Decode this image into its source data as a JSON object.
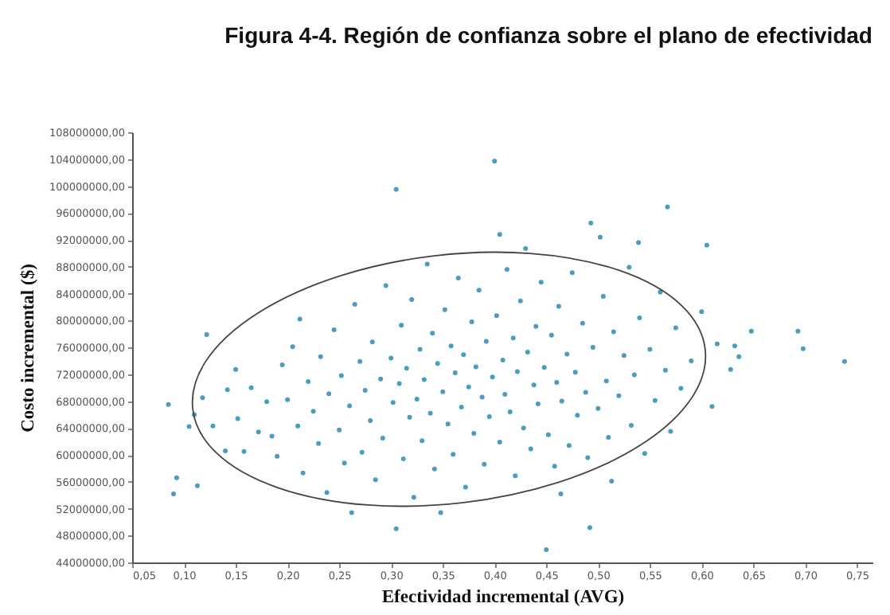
{
  "chart_data": {
    "type": "scatter",
    "title": "Figura 4-4. Región de confianza sobre el plano de efectividad",
    "xlabel": "Efectividad incremental (AVG)",
    "ylabel": "Costo incremental ($)",
    "xlim": [
      0.05,
      0.765
    ],
    "ylim": [
      44000000,
      108000000
    ],
    "xticks": [
      {
        "value": 0.05,
        "label": "0,05"
      },
      {
        "value": 0.1,
        "label": "0,10"
      },
      {
        "value": 0.15,
        "label": "0,15"
      },
      {
        "value": 0.2,
        "label": "0,20"
      },
      {
        "value": 0.25,
        "label": "0,25"
      },
      {
        "value": 0.3,
        "label": "0,30"
      },
      {
        "value": 0.35,
        "label": "0,35"
      },
      {
        "value": 0.4,
        "label": "0,40"
      },
      {
        "value": 0.45,
        "label": "0,45"
      },
      {
        "value": 0.5,
        "label": "0,50"
      },
      {
        "value": 0.55,
        "label": "0,55"
      },
      {
        "value": 0.6,
        "label": "0,60"
      },
      {
        "value": 0.65,
        "label": "0,65"
      },
      {
        "value": 0.7,
        "label": "0,70"
      },
      {
        "value": 0.75,
        "label": "0,75"
      }
    ],
    "yticks": [
      {
        "value": 44000000,
        "label": "44000000,00"
      },
      {
        "value": 48000000,
        "label": "48000000,00"
      },
      {
        "value": 52000000,
        "label": "52000000,00"
      },
      {
        "value": 56000000,
        "label": "56000000,00"
      },
      {
        "value": 60000000,
        "label": "60000000,00"
      },
      {
        "value": 64000000,
        "label": "64000000,00"
      },
      {
        "value": 68000000,
        "label": "68000000,00"
      },
      {
        "value": 72000000,
        "label": "72000000,00"
      },
      {
        "value": 76000000,
        "label": "76000000,00"
      },
      {
        "value": 80000000,
        "label": "80000000,00"
      },
      {
        "value": 84000000,
        "label": "84000000,00"
      },
      {
        "value": 88000000,
        "label": "88000000,00"
      },
      {
        "value": 92000000,
        "label": "92000000,00"
      },
      {
        "value": 96000000,
        "label": "96000000,00"
      },
      {
        "value": 100000000,
        "label": "100000000,00"
      },
      {
        "value": 104000000,
        "label": "104000000,00"
      },
      {
        "value": 108000000,
        "label": "108000000,00"
      }
    ],
    "grid": false,
    "marker": "circle",
    "series": [
      {
        "type": "scatter",
        "color": "#4a9dbd",
        "x": [
          0.085,
          0.093,
          0.09,
          0.113,
          0.122,
          0.105,
          0.11,
          0.118,
          0.128,
          0.14,
          0.142,
          0.15,
          0.152,
          0.158,
          0.165,
          0.172,
          0.18,
          0.185,
          0.19,
          0.195,
          0.2,
          0.205,
          0.21,
          0.212,
          0.215,
          0.22,
          0.225,
          0.23,
          0.232,
          0.238,
          0.24,
          0.245,
          0.25,
          0.252,
          0.255,
          0.26,
          0.262,
          0.265,
          0.27,
          0.272,
          0.275,
          0.28,
          0.282,
          0.285,
          0.29,
          0.292,
          0.295,
          0.3,
          0.302,
          0.305,
          0.305,
          0.308,
          0.31,
          0.312,
          0.315,
          0.318,
          0.32,
          0.322,
          0.325,
          0.328,
          0.33,
          0.332,
          0.335,
          0.338,
          0.34,
          0.342,
          0.345,
          0.348,
          0.35,
          0.352,
          0.355,
          0.358,
          0.36,
          0.362,
          0.365,
          0.368,
          0.37,
          0.372,
          0.375,
          0.378,
          0.38,
          0.382,
          0.385,
          0.388,
          0.39,
          0.392,
          0.395,
          0.398,
          0.4,
          0.402,
          0.405,
          0.405,
          0.408,
          0.41,
          0.412,
          0.415,
          0.418,
          0.42,
          0.422,
          0.425,
          0.428,
          0.43,
          0.432,
          0.435,
          0.438,
          0.44,
          0.442,
          0.445,
          0.448,
          0.45,
          0.452,
          0.455,
          0.458,
          0.46,
          0.462,
          0.464,
          0.465,
          0.47,
          0.472,
          0.475,
          0.478,
          0.48,
          0.485,
          0.488,
          0.49,
          0.492,
          0.493,
          0.495,
          0.5,
          0.502,
          0.505,
          0.508,
          0.51,
          0.513,
          0.515,
          0.52,
          0.525,
          0.53,
          0.532,
          0.535,
          0.539,
          0.54,
          0.545,
          0.55,
          0.555,
          0.56,
          0.565,
          0.567,
          0.57,
          0.575,
          0.58,
          0.59,
          0.6,
          0.605,
          0.61,
          0.615,
          0.628,
          0.632,
          0.636,
          0.648,
          0.693,
          0.698,
          0.738
        ],
        "values": [
          67500000,
          56600000,
          54200000,
          55400000,
          77900000,
          64200000,
          66000000,
          68500000,
          64300000,
          60600000,
          69700000,
          72700000,
          65400000,
          60500000,
          70000000,
          63400000,
          67900000,
          62800000,
          59800000,
          73400000,
          68200000,
          76100000,
          64300000,
          80200000,
          57300000,
          70900000,
          66500000,
          61700000,
          74600000,
          54400000,
          69100000,
          78600000,
          63700000,
          71800000,
          58800000,
          67300000,
          51400000,
          82400000,
          73900000,
          60400000,
          69600000,
          65100000,
          76800000,
          56300000,
          71300000,
          62500000,
          85200000,
          74400000,
          67800000,
          99500000,
          49000000,
          70600000,
          79300000,
          59400000,
          72900000,
          65600000,
          83100000,
          53700000,
          68300000,
          75700000,
          62100000,
          71200000,
          88400000,
          66200000,
          78100000,
          57900000,
          73600000,
          51400000,
          69400000,
          81600000,
          64600000,
          76200000,
          60100000,
          72200000,
          86300000,
          67100000,
          74900000,
          55200000,
          70100000,
          79800000,
          63200000,
          73100000,
          84500000,
          68600000,
          58600000,
          76900000,
          65700000,
          71600000,
          103700000,
          80700000,
          92800000,
          61900000,
          74100000,
          69000000,
          87600000,
          66400000,
          77400000,
          56900000,
          72400000,
          82900000,
          64000000,
          90700000,
          75300000,
          60900000,
          70400000,
          79100000,
          67600000,
          85700000,
          73000000,
          45900000,
          63000000,
          77800000,
          58300000,
          70800000,
          82100000,
          54200000,
          68000000,
          75000000,
          61400000,
          87100000,
          72300000,
          65900000,
          79600000,
          69300000,
          59600000,
          49200000,
          94500000,
          76000000,
          66900000,
          92400000,
          83600000,
          71000000,
          62600000,
          56100000,
          78300000,
          68800000,
          74800000,
          87900000,
          64400000,
          71900000,
          91600000,
          80400000,
          60200000,
          75700000,
          68100000,
          84200000,
          72600000,
          96900000,
          63500000,
          78900000,
          69900000,
          74000000,
          81300000,
          91200000,
          67200000,
          76500000,
          72700000,
          76200000,
          74600000,
          78400000,
          78400000,
          75800000,
          73900000
        ]
      }
    ]
  }
}
